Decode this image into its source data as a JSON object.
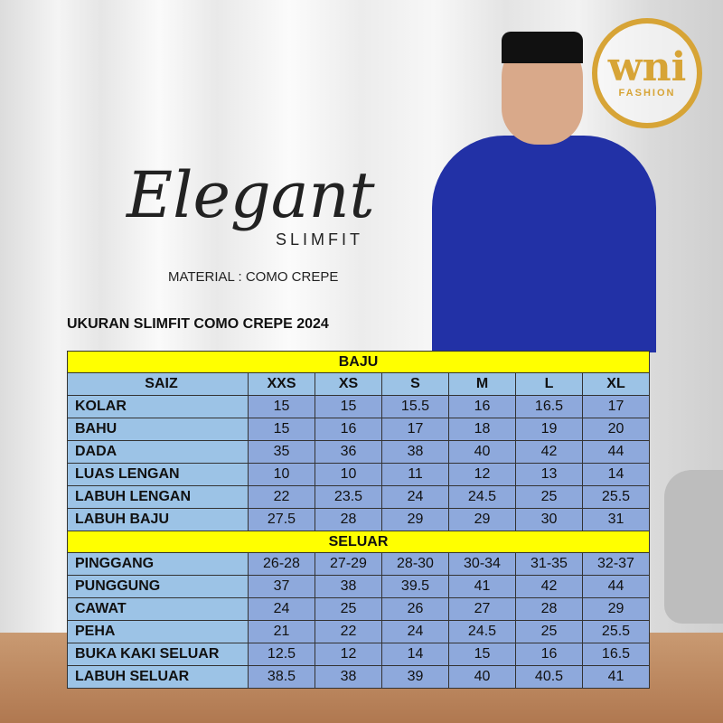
{
  "brand": {
    "logo_text": "wni",
    "logo_sub": "FASHION",
    "gold": "#d7a436"
  },
  "product": {
    "title": "Elegant",
    "subtitle": "SLIMFIT",
    "material": "MATERIAL : COMO CREPE"
  },
  "table_title": "UKURAN SLIMFIT COMO CREPE 2024",
  "colors": {
    "section_header": "#ffff00",
    "label_cell": "#9cc3e6",
    "value_cell": "#8ea9dc"
  },
  "baju": {
    "header": "BAJU",
    "columns": [
      "SAIZ",
      "XXS",
      "XS",
      "S",
      "M",
      "L",
      "XL"
    ],
    "rows": [
      {
        "label": "KOLAR",
        "values": [
          "15",
          "15",
          "15.5",
          "16",
          "16.5",
          "17"
        ]
      },
      {
        "label": "BAHU",
        "values": [
          "15",
          "16",
          "17",
          "18",
          "19",
          "20"
        ]
      },
      {
        "label": "DADA",
        "values": [
          "35",
          "36",
          "38",
          "40",
          "42",
          "44"
        ]
      },
      {
        "label": "LUAS LENGAN",
        "values": [
          "10",
          "10",
          "11",
          "12",
          "13",
          "14"
        ]
      },
      {
        "label": "LABUH LENGAN",
        "values": [
          "22",
          "23.5",
          "24",
          "24.5",
          "25",
          "25.5"
        ]
      },
      {
        "label": "LABUH BAJU",
        "values": [
          "27.5",
          "28",
          "29",
          "29",
          "30",
          "31"
        ]
      }
    ]
  },
  "seluar": {
    "header": "SELUAR",
    "rows": [
      {
        "label": "PINGGANG",
        "values": [
          "26-28",
          "27-29",
          "28-30",
          "30-34",
          "31-35",
          "32-37"
        ]
      },
      {
        "label": "PUNGGUNG",
        "values": [
          "37",
          "38",
          "39.5",
          "41",
          "42",
          "44"
        ]
      },
      {
        "label": "CAWAT",
        "values": [
          "24",
          "25",
          "26",
          "27",
          "28",
          "29"
        ]
      },
      {
        "label": "PEHA",
        "values": [
          "21",
          "22",
          "24",
          "24.5",
          "25",
          "25.5"
        ]
      },
      {
        "label": "BUKA KAKI SELUAR",
        "values": [
          "12.5",
          "12",
          "14",
          "15",
          "16",
          "16.5"
        ]
      },
      {
        "label": "LABUH SELUAR",
        "values": [
          "38.5",
          "38",
          "39",
          "40",
          "40.5",
          "41"
        ]
      }
    ]
  }
}
